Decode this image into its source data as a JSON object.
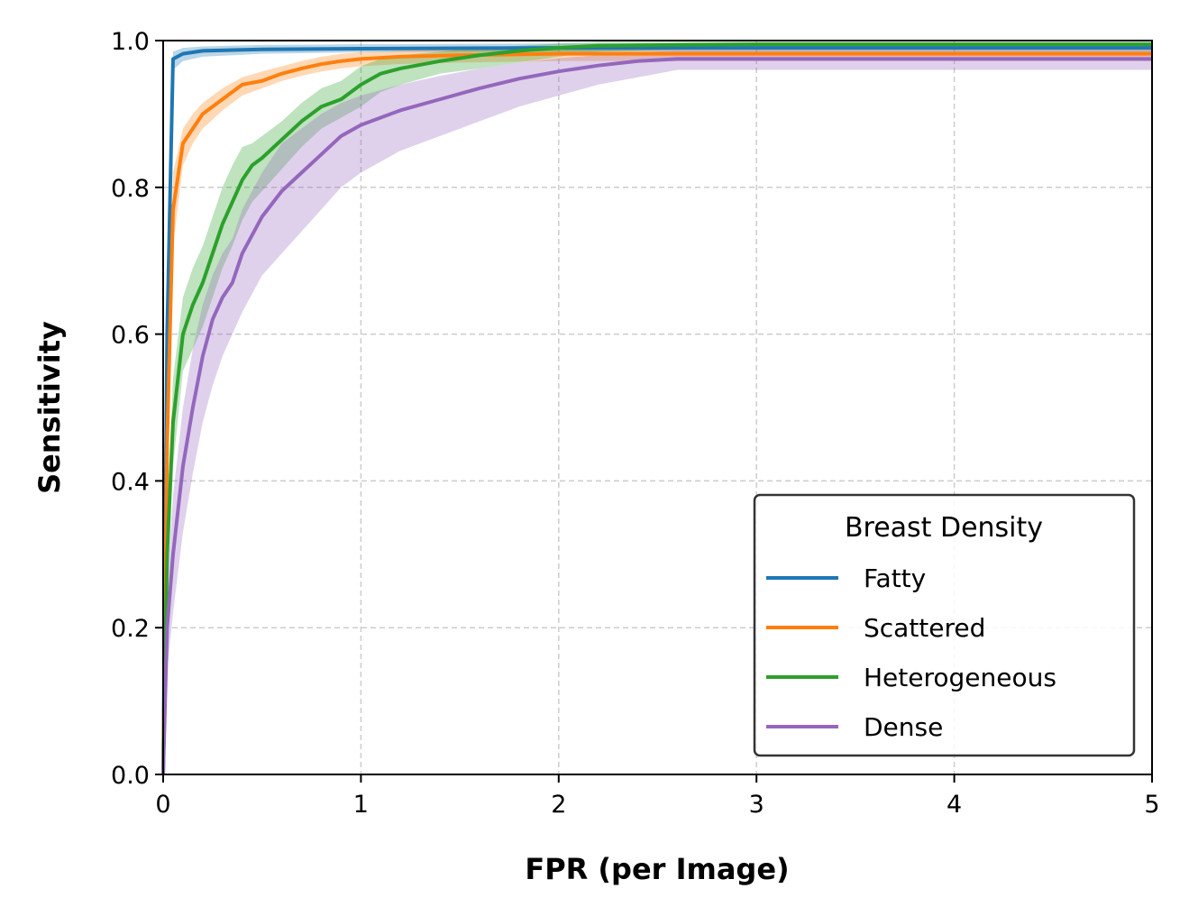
{
  "chart_data": {
    "type": "line",
    "xlabel": "FPR (per Image)",
    "ylabel": "Sensitivity",
    "xlim": [
      0,
      5
    ],
    "ylim": [
      0,
      1
    ],
    "xticks": [
      0,
      1,
      2,
      3,
      4,
      5
    ],
    "xtick_labels": [
      "0",
      "1",
      "2",
      "3",
      "4",
      "5"
    ],
    "yticks": [
      0,
      0.2,
      0.4,
      0.6,
      0.8,
      1.0
    ],
    "ytick_labels": [
      "0.0",
      "0.2",
      "0.4",
      "0.6",
      "0.8",
      "1.0"
    ],
    "grid": true,
    "legend": {
      "title": "Breast Density",
      "placement": "lower-right"
    },
    "series": [
      {
        "name": "Fatty",
        "color": "#1f77b4",
        "x": [
          0,
          0.02,
          0.05,
          0.1,
          0.2,
          0.5,
          1,
          2,
          3,
          4,
          5
        ],
        "y": [
          0,
          0.6,
          0.975,
          0.982,
          0.986,
          0.988,
          0.989,
          0.99,
          0.99,
          0.99,
          0.99
        ],
        "lower": [
          0,
          0.55,
          0.96,
          0.972,
          0.978,
          0.982,
          0.984,
          0.985,
          0.985,
          0.985,
          0.985
        ],
        "upper": [
          0,
          0.65,
          0.985,
          0.99,
          0.992,
          0.994,
          0.995,
          0.996,
          0.996,
          0.996,
          0.996
        ]
      },
      {
        "name": "Scattered",
        "color": "#ff7f0e",
        "x": [
          0,
          0.02,
          0.05,
          0.1,
          0.15,
          0.2,
          0.3,
          0.4,
          0.5,
          0.6,
          0.7,
          0.8,
          0.9,
          1.0,
          1.2,
          1.5,
          2.0,
          3,
          4,
          5
        ],
        "y": [
          0,
          0.45,
          0.77,
          0.86,
          0.88,
          0.9,
          0.92,
          0.94,
          0.945,
          0.955,
          0.962,
          0.968,
          0.972,
          0.975,
          0.978,
          0.98,
          0.982,
          0.982,
          0.982,
          0.982
        ],
        "lower": [
          0,
          0.38,
          0.72,
          0.83,
          0.86,
          0.88,
          0.905,
          0.925,
          0.935,
          0.945,
          0.952,
          0.958,
          0.962,
          0.965,
          0.968,
          0.97,
          0.972,
          0.972,
          0.972,
          0.972
        ],
        "upper": [
          0,
          0.52,
          0.82,
          0.88,
          0.9,
          0.915,
          0.935,
          0.95,
          0.958,
          0.965,
          0.972,
          0.978,
          0.982,
          0.984,
          0.986,
          0.988,
          0.99,
          0.99,
          0.99,
          0.99
        ]
      },
      {
        "name": "Heterogeneous",
        "color": "#2ca02c",
        "x": [
          0,
          0.02,
          0.05,
          0.1,
          0.15,
          0.2,
          0.25,
          0.3,
          0.35,
          0.4,
          0.45,
          0.5,
          0.6,
          0.7,
          0.8,
          0.9,
          1.0,
          1.1,
          1.2,
          1.4,
          1.6,
          1.8,
          2.0,
          2.2,
          3,
          4,
          5
        ],
        "y": [
          0,
          0.3,
          0.48,
          0.6,
          0.64,
          0.67,
          0.71,
          0.75,
          0.78,
          0.81,
          0.83,
          0.84,
          0.865,
          0.89,
          0.91,
          0.92,
          0.94,
          0.955,
          0.962,
          0.972,
          0.98,
          0.986,
          0.99,
          0.993,
          0.995,
          0.995,
          0.995
        ],
        "lower": [
          0,
          0.24,
          0.42,
          0.55,
          0.58,
          0.61,
          0.65,
          0.69,
          0.72,
          0.755,
          0.78,
          0.795,
          0.825,
          0.855,
          0.88,
          0.895,
          0.91,
          0.93,
          0.94,
          0.955,
          0.962,
          0.97,
          0.978,
          0.985,
          0.99,
          0.99,
          0.99
        ],
        "upper": [
          0,
          0.36,
          0.54,
          0.65,
          0.69,
          0.72,
          0.76,
          0.8,
          0.83,
          0.855,
          0.86,
          0.87,
          0.89,
          0.915,
          0.935,
          0.945,
          0.965,
          0.975,
          0.98,
          0.985,
          0.99,
          0.993,
          0.996,
          0.998,
          0.998,
          0.998,
          0.998
        ]
      },
      {
        "name": "Dense",
        "color": "#9467bd",
        "x": [
          0,
          0.02,
          0.05,
          0.1,
          0.15,
          0.2,
          0.25,
          0.3,
          0.35,
          0.4,
          0.5,
          0.6,
          0.7,
          0.8,
          0.9,
          1.0,
          1.2,
          1.4,
          1.6,
          1.8,
          2.0,
          2.2,
          2.4,
          2.6,
          3,
          4,
          5
        ],
        "y": [
          0,
          0.2,
          0.3,
          0.42,
          0.5,
          0.57,
          0.62,
          0.65,
          0.67,
          0.71,
          0.76,
          0.795,
          0.82,
          0.845,
          0.87,
          0.885,
          0.905,
          0.92,
          0.935,
          0.948,
          0.958,
          0.966,
          0.972,
          0.975,
          0.975,
          0.975,
          0.975
        ],
        "lower": [
          0,
          0.14,
          0.22,
          0.33,
          0.41,
          0.48,
          0.53,
          0.57,
          0.6,
          0.63,
          0.68,
          0.71,
          0.74,
          0.77,
          0.8,
          0.82,
          0.85,
          0.87,
          0.89,
          0.91,
          0.925,
          0.94,
          0.95,
          0.96,
          0.96,
          0.96,
          0.96
        ],
        "upper": [
          0,
          0.26,
          0.38,
          0.5,
          0.58,
          0.64,
          0.68,
          0.71,
          0.73,
          0.77,
          0.82,
          0.86,
          0.88,
          0.9,
          0.915,
          0.925,
          0.94,
          0.952,
          0.962,
          0.97,
          0.976,
          0.98,
          0.984,
          0.986,
          0.986,
          0.986,
          0.986
        ]
      }
    ]
  }
}
